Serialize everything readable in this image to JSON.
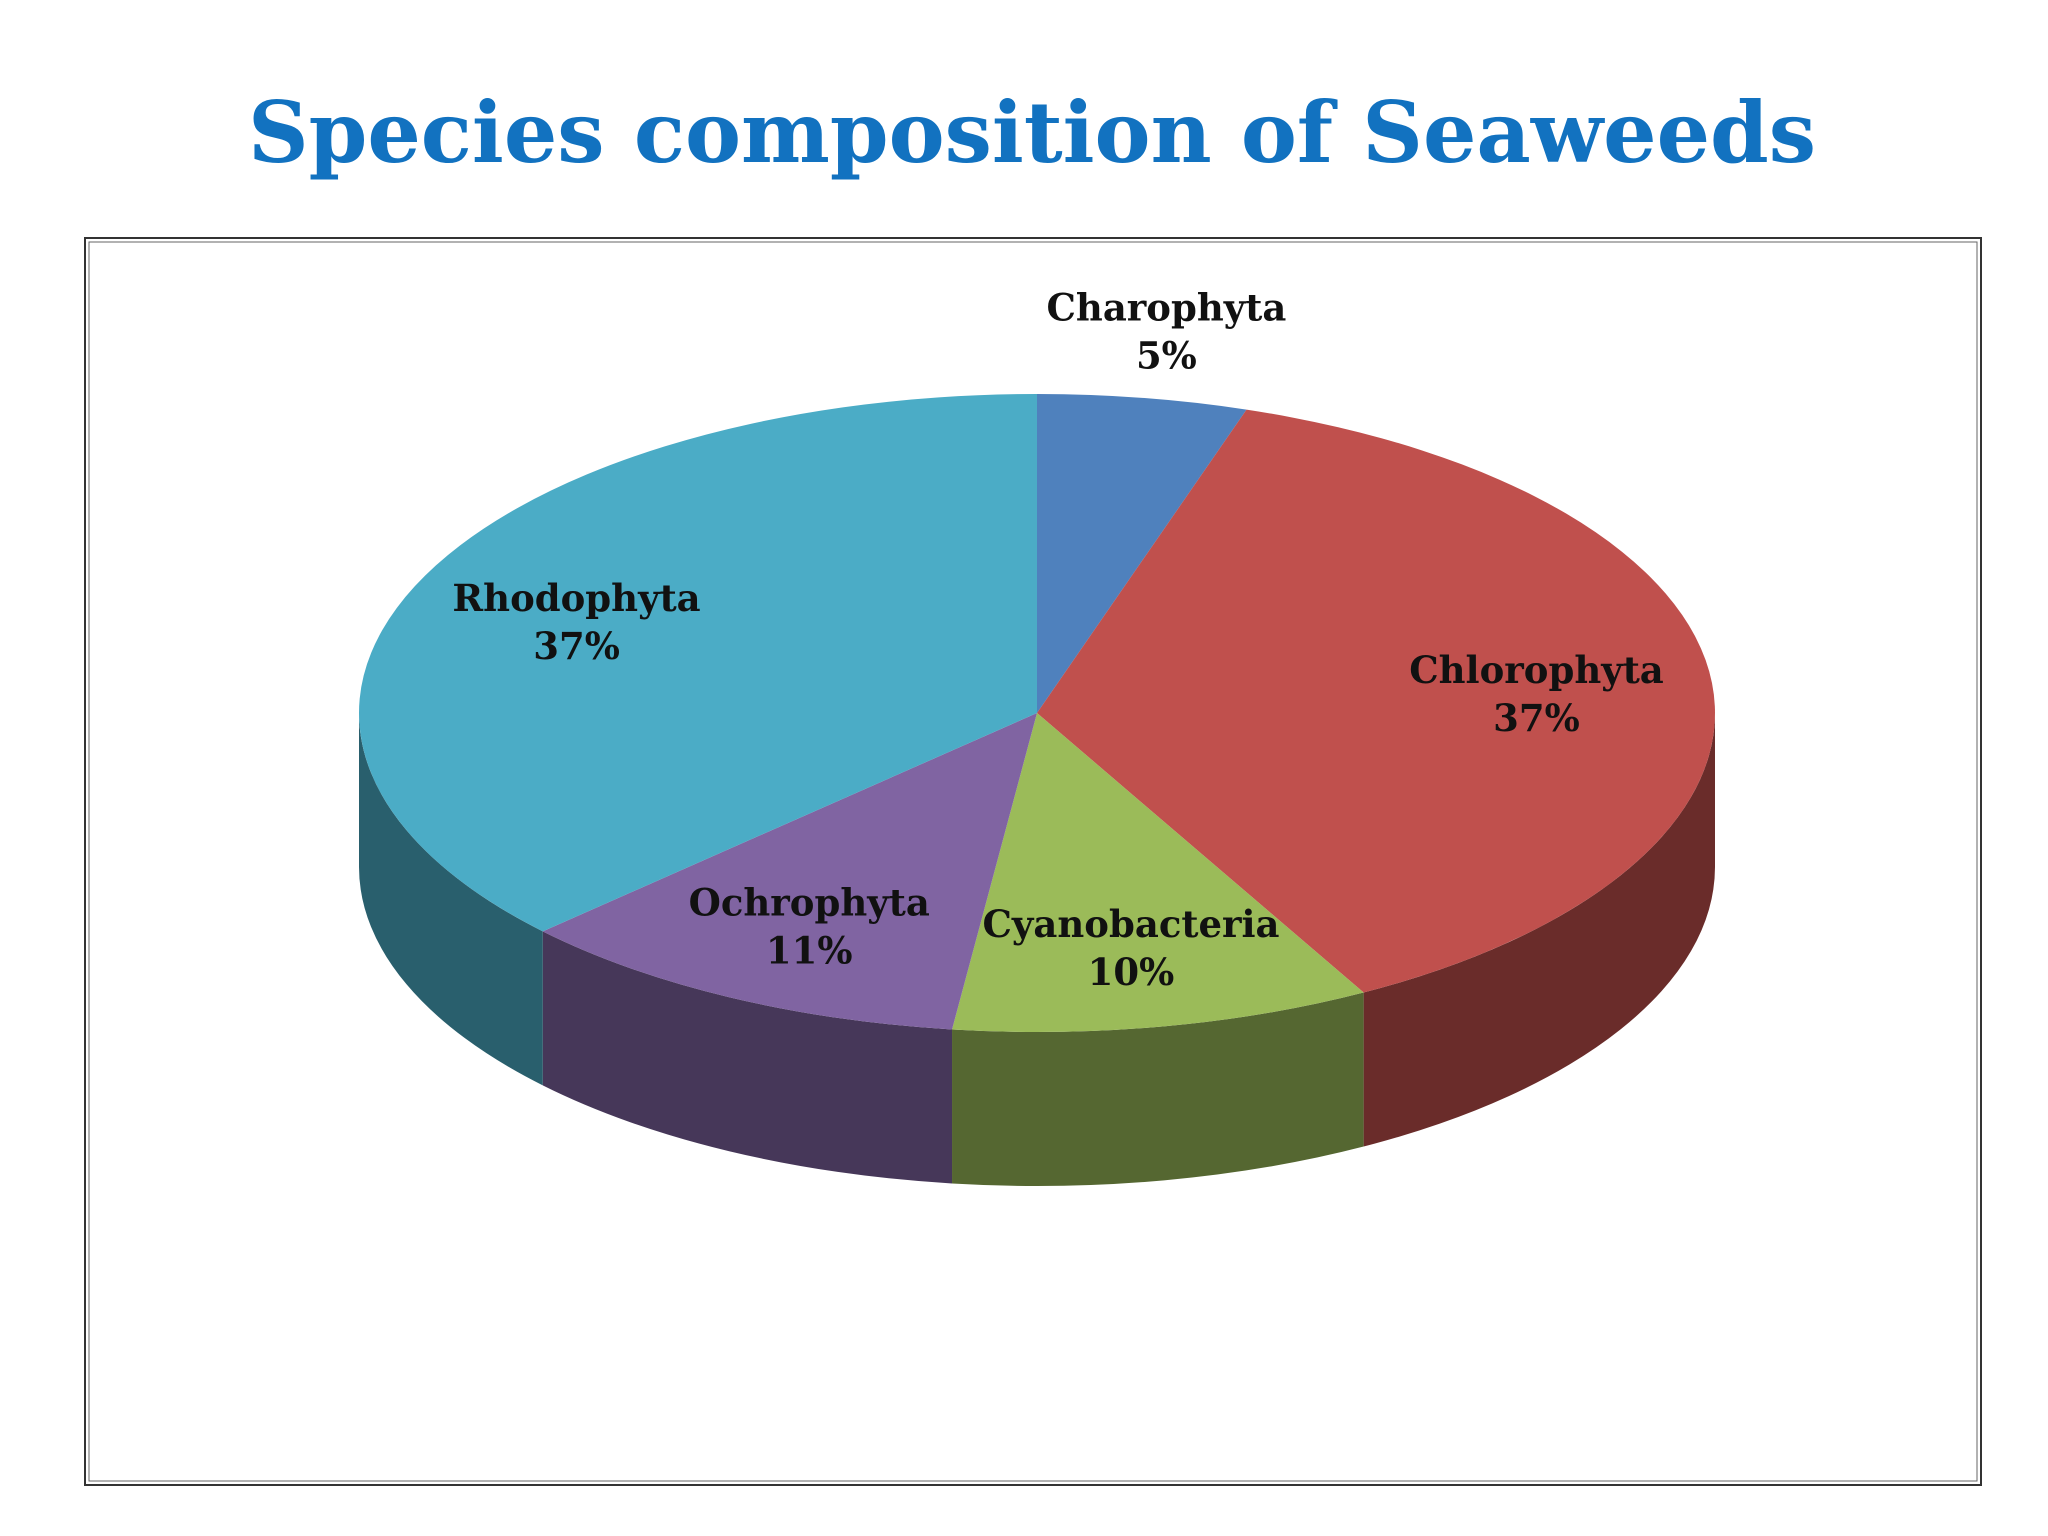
{
  "chart_data": {
    "type": "pie",
    "title": "Species composition of Seaweeds",
    "categories": [
      "Charophyta",
      "Chlorophyta",
      "Cyanobacteria",
      "Ochrophyta",
      "Rhodophyta"
    ],
    "values": [
      5,
      37,
      10,
      11,
      37
    ],
    "value_labels": [
      "5%",
      "37%",
      "10%",
      "11%",
      "37%"
    ],
    "colors": [
      "#4f81bd",
      "#c0504d",
      "#9bbb59",
      "#8064a2",
      "#4bacc6"
    ]
  }
}
